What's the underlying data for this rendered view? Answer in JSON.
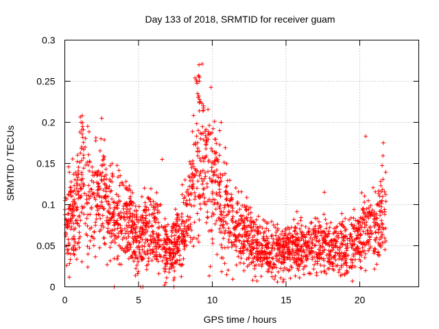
{
  "chart_data": {
    "type": "scatter",
    "title": "Day 133 of 2018, SRMTID for receiver guam",
    "xlabel": "GPS time / hours",
    "ylabel": "SRMTID / TECUs",
    "xlim": [
      0,
      24
    ],
    "ylim": [
      0,
      0.3
    ],
    "xticks": [
      0,
      5,
      10,
      15,
      20
    ],
    "xtick_labels": [
      "0",
      "5",
      "10",
      "15",
      "20"
    ],
    "yticks": [
      0,
      0.05,
      0.1,
      0.15,
      0.2,
      0.25,
      0.3
    ],
    "ytick_labels": [
      "0",
      "0.05",
      "0.1",
      "0.15",
      "0.2",
      "0.25",
      "0.3"
    ],
    "grid": true,
    "marker": "plus",
    "color": "#ff0000",
    "x_range_of_data": [
      0,
      21.8
    ],
    "profile": [
      [
        0.0,
        0.07
      ],
      [
        0.5,
        0.085
      ],
      [
        1.0,
        0.1
      ],
      [
        1.2,
        0.14
      ],
      [
        1.5,
        0.12
      ],
      [
        2.0,
        0.1
      ],
      [
        2.5,
        0.11
      ],
      [
        3.0,
        0.09
      ],
      [
        3.5,
        0.085
      ],
      [
        4.0,
        0.08
      ],
      [
        4.5,
        0.075
      ],
      [
        5.0,
        0.06
      ],
      [
        5.5,
        0.065
      ],
      [
        6.0,
        0.07
      ],
      [
        6.5,
        0.06
      ],
      [
        7.0,
        0.04
      ],
      [
        7.5,
        0.05
      ],
      [
        8.0,
        0.07
      ],
      [
        8.5,
        0.1
      ],
      [
        8.8,
        0.15
      ],
      [
        9.1,
        0.18
      ],
      [
        9.5,
        0.16
      ],
      [
        10.0,
        0.13
      ],
      [
        10.5,
        0.11
      ],
      [
        11.0,
        0.085
      ],
      [
        11.5,
        0.07
      ],
      [
        12.0,
        0.065
      ],
      [
        12.5,
        0.06
      ],
      [
        13.0,
        0.05
      ],
      [
        14.0,
        0.045
      ],
      [
        15.0,
        0.045
      ],
      [
        16.0,
        0.05
      ],
      [
        17.0,
        0.05
      ],
      [
        18.0,
        0.045
      ],
      [
        19.0,
        0.05
      ],
      [
        20.0,
        0.055
      ],
      [
        20.5,
        0.08
      ],
      [
        21.0,
        0.07
      ],
      [
        21.5,
        0.09
      ],
      [
        21.8,
        0.085
      ]
    ],
    "peak_points": [
      [
        1.1,
        0.2
      ],
      [
        1.2,
        0.195
      ],
      [
        2.5,
        0.205
      ],
      [
        2.45,
        0.18
      ],
      [
        9.1,
        0.27
      ],
      [
        9.0,
        0.235
      ],
      [
        9.2,
        0.225
      ],
      [
        9.4,
        0.22
      ],
      [
        10.6,
        0.2
      ],
      [
        10.5,
        0.19
      ],
      [
        20.4,
        0.183
      ],
      [
        21.6,
        0.175
      ],
      [
        17.6,
        0.115
      ],
      [
        6.6,
        0.155
      ],
      [
        5.4,
        0.12
      ]
    ],
    "zero_points": [
      [
        3.35,
        0.0
      ],
      [
        5.15,
        0.0
      ],
      [
        5.3,
        0.0
      ],
      [
        6.75,
        0.002
      ],
      [
        7.4,
        0.0
      ],
      [
        6.85,
        0.005
      ]
    ]
  }
}
